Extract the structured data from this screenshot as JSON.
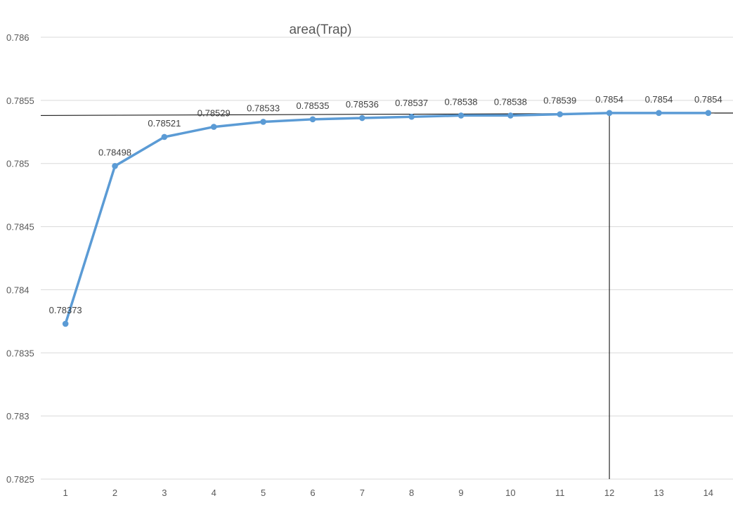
{
  "chart_data": {
    "type": "line",
    "title": "area(Trap)",
    "xlabel": "",
    "ylabel": "",
    "categories": [
      "1",
      "2",
      "3",
      "4",
      "5",
      "6",
      "7",
      "8",
      "9",
      "10",
      "11",
      "12",
      "13",
      "14"
    ],
    "series": [
      {
        "values": [
          0.78373,
          0.78498,
          0.78521,
          0.78529,
          0.78533,
          0.78535,
          0.78536,
          0.78537,
          0.78538,
          0.78538,
          0.78539,
          0.7854,
          0.7854,
          0.7854
        ],
        "labels": [
          "0.78373",
          "0.78498",
          "0.78521",
          "0.78529",
          "0.78533",
          "0.78535",
          "0.78536",
          "0.78537",
          "0.78538",
          "0.78538",
          "0.78539",
          "0.7854",
          "0.7854",
          "0.7854"
        ],
        "color": "#5B9BD5",
        "markers": true
      }
    ],
    "ylim": [
      0.7825,
      0.786
    ],
    "yticks": [
      "0.7825",
      "0.783",
      "0.7835",
      "0.784",
      "0.7845",
      "0.785",
      "0.7855",
      "0.786"
    ],
    "grid": true,
    "legend": "none",
    "reference_lines": [
      {
        "orientation": "horizontal",
        "from": [
          0.5,
          0.78538
        ],
        "to": [
          14.5,
          0.7854
        ],
        "color": "#000000"
      },
      {
        "orientation": "vertical",
        "x": 12,
        "from_value": 0.7854,
        "color": "#000000"
      }
    ]
  },
  "colors": {
    "line": "#5B9BD5",
    "gridline": "#D9D9D9",
    "axis_text": "#595959",
    "reference_line": "#000000"
  }
}
